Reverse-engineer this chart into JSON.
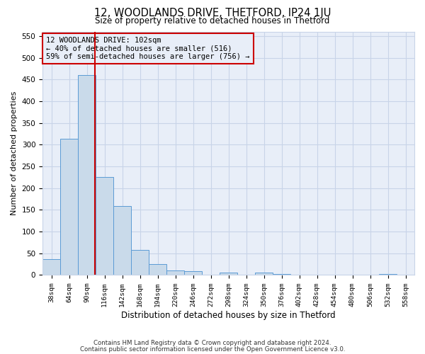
{
  "title": "12, WOODLANDS DRIVE, THETFORD, IP24 1JU",
  "subtitle": "Size of property relative to detached houses in Thetford",
  "xlabel": "Distribution of detached houses by size in Thetford",
  "ylabel": "Number of detached properties",
  "footnote1": "Contains HM Land Registry data © Crown copyright and database right 2024.",
  "footnote2": "Contains public sector information licensed under the Open Government Licence v3.0.",
  "bin_labels": [
    "38sqm",
    "64sqm",
    "90sqm",
    "116sqm",
    "142sqm",
    "168sqm",
    "194sqm",
    "220sqm",
    "246sqm",
    "272sqm",
    "298sqm",
    "324sqm",
    "350sqm",
    "376sqm",
    "402sqm",
    "428sqm",
    "454sqm",
    "480sqm",
    "506sqm",
    "532sqm",
    "558sqm"
  ],
  "bar_values": [
    37,
    313,
    460,
    225,
    158,
    57,
    25,
    11,
    9,
    1,
    5,
    0,
    6,
    2,
    1,
    0,
    0,
    0,
    0,
    2,
    0
  ],
  "bar_color": "#c9daea",
  "bar_edge_color": "#5b9bd5",
  "property_label": "12 WOODLANDS DRIVE: 102sqm",
  "annotation_line1": "← 40% of detached houses are smaller (516)",
  "annotation_line2": "59% of semi-detached houses are larger (756) →",
  "vline_color": "#cc0000",
  "ylim": [
    0,
    560
  ],
  "yticks": [
    0,
    50,
    100,
    150,
    200,
    250,
    300,
    350,
    400,
    450,
    500,
    550
  ],
  "grid_color": "#c8d4e8",
  "annotation_box_color": "#cc0000",
  "bg_color": "#ffffff",
  "plot_bg_color": "#e8eef8"
}
